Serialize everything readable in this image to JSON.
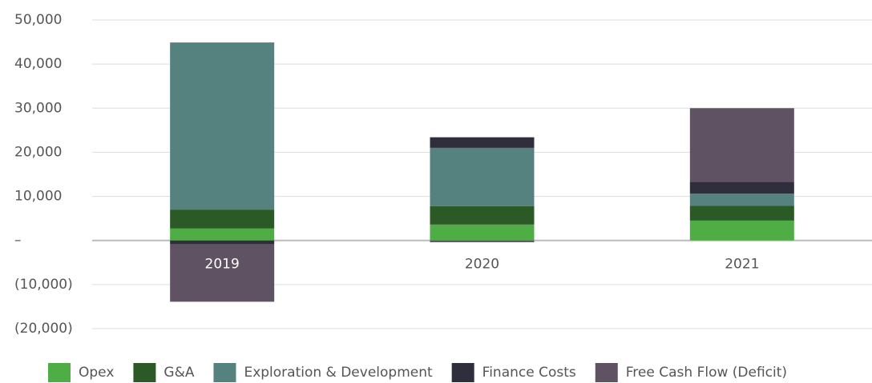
{
  "chart_data": {
    "type": "stacked_bar",
    "categories": [
      "2019",
      "2020",
      "2021"
    ],
    "series": [
      {
        "name": "Opex",
        "color": "#4fad45",
        "values": [
          2700,
          3600,
          4500
        ]
      },
      {
        "name": "G&A",
        "color": "#2b5a27",
        "values": [
          4300,
          4200,
          3400
        ]
      },
      {
        "name": "Exploration & Development",
        "color": "#55827e",
        "values": [
          37900,
          13200,
          2700
        ]
      },
      {
        "name": "Finance Costs",
        "color": "#2e2e3c",
        "values": [
          -900,
          2400,
          2700
        ]
      },
      {
        "name": "Free Cash Flow (Deficit)",
        "color": "#5e5263",
        "values": [
          -13000,
          -400,
          16700
        ]
      }
    ],
    "ylim": [
      -20000,
      50000
    ],
    "yticks": [
      {
        "value": -20000,
        "label": "(20,000)"
      },
      {
        "value": -10000,
        "label": "(10,000)"
      },
      {
        "value": 0,
        "label": "–"
      },
      {
        "value": 10000,
        "label": "10,000"
      },
      {
        "value": 20000,
        "label": "20,000"
      },
      {
        "value": 30000,
        "label": "30,000"
      },
      {
        "value": 40000,
        "label": "40,000"
      },
      {
        "value": 50000,
        "label": "50,000"
      }
    ],
    "grid": true,
    "legend": "bottom"
  }
}
